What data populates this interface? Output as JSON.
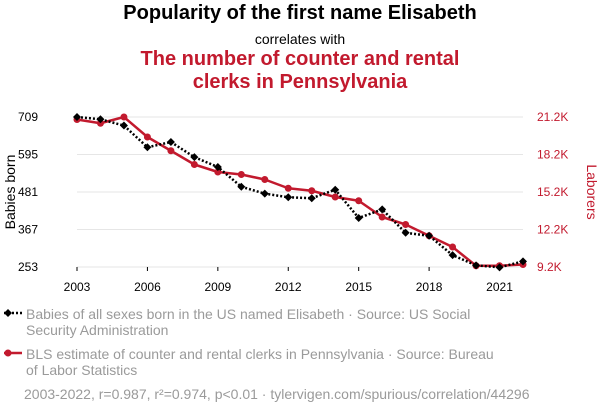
{
  "titles": {
    "main": "Popularity of the first name Elisabeth",
    "connector": "correlates with",
    "secondary_line1": "The number of counter and rental",
    "secondary_line2": "clerks in Pennsylvania"
  },
  "colors": {
    "series1": "#000000",
    "series2": "#c21a2e",
    "legend_text": "#9a9a9a",
    "grid": "#e6e6e6"
  },
  "chart_data": {
    "type": "line",
    "x": [
      2003,
      2004,
      2005,
      2006,
      2007,
      2008,
      2009,
      2010,
      2011,
      2012,
      2013,
      2014,
      2015,
      2016,
      2017,
      2018,
      2019,
      2020,
      2021,
      2022
    ],
    "x_ticks": [
      "2003",
      "2006",
      "2009",
      "2012",
      "2015",
      "2018",
      "2021"
    ],
    "xlim": [
      2003,
      2022
    ],
    "left_axis": {
      "label": "Babies born",
      "ticks": [
        "709",
        "595",
        "481",
        "367",
        "253"
      ],
      "ylim": [
        253,
        709
      ]
    },
    "right_axis": {
      "label": "Laborers",
      "ticks": [
        "21.2K",
        "18.2K",
        "15.2K",
        "12.2K",
        "9.2K"
      ],
      "ylim": [
        9200,
        21200
      ]
    },
    "series": [
      {
        "name": "Babies of all sexes born in the US named Elisabeth",
        "axis": "left",
        "style": "dotted",
        "marker": "diamond",
        "values": [
          709,
          702,
          683,
          617,
          633,
          587,
          557,
          497,
          476,
          465,
          462,
          488,
          402,
          428,
          357,
          348,
          289,
          258,
          252,
          270
        ]
      },
      {
        "name": "BLS estimate of counter and rental clerks in Pennsylvania",
        "axis": "right",
        "style": "solid",
        "marker": "circle",
        "values": [
          21000,
          20700,
          21200,
          19600,
          18500,
          17400,
          16800,
          16600,
          16200,
          15500,
          15300,
          14800,
          14500,
          13200,
          12600,
          11700,
          10800,
          9300,
          9300,
          9400
        ]
      }
    ]
  },
  "legend": {
    "item1_line1": "Babies of all sexes born in the US named Elisabeth · Source: US Social",
    "item1_line2": "Security Administration",
    "item2_line1": "BLS estimate of counter and rental clerks in Pennsylvania · Source: Bureau",
    "item2_line2": "of Labor Statistics"
  },
  "footer": "2003-2022, r=0.987, r²=0.974, p<0.01 · tylervigen.com/spurious/correlation/44296"
}
